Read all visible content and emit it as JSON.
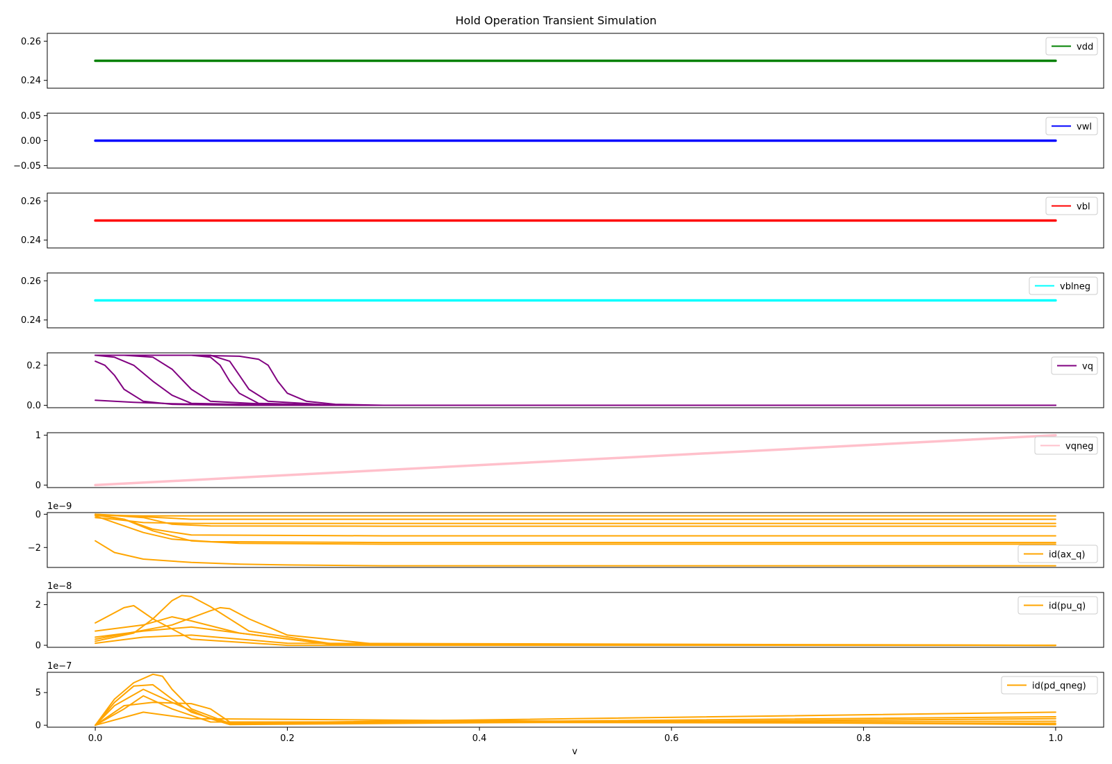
{
  "chart_data": {
    "type": "line",
    "title": "Hold Operation Transient Simulation",
    "xlabel": "v",
    "xlim": [
      -0.05,
      1.05
    ],
    "xticks": [
      0.0,
      0.2,
      0.4,
      0.6,
      0.8,
      1.0
    ],
    "xtick_labels": [
      "0.0",
      "0.2",
      "0.4",
      "0.6",
      "0.8",
      "1.0"
    ],
    "grid": false,
    "subplots": [
      {
        "name": "vdd",
        "color": "#008000",
        "legend": "top-right",
        "ylim": [
          0.236,
          0.264
        ],
        "yticks": [
          0.24,
          0.26
        ],
        "ytick_labels": [
          "0.24",
          "0.26"
        ],
        "offset_text": "",
        "series": [
          {
            "x": [
              0.0,
              1.0
            ],
            "y": [
              0.25,
              0.25
            ]
          }
        ]
      },
      {
        "name": "vwl",
        "color": "#0000ff",
        "legend": "top-right",
        "ylim": [
          -0.055,
          0.055
        ],
        "yticks": [
          -0.05,
          0.0,
          0.05
        ],
        "ytick_labels": [
          "−0.05",
          "0.00",
          "0.05"
        ],
        "offset_text": "",
        "series": [
          {
            "x": [
              0.0,
              1.0
            ],
            "y": [
              0.0,
              0.0
            ]
          }
        ]
      },
      {
        "name": "vbl",
        "color": "#ff0000",
        "legend": "top-right",
        "ylim": [
          0.236,
          0.264
        ],
        "yticks": [
          0.24,
          0.26
        ],
        "ytick_labels": [
          "0.24",
          "0.26"
        ],
        "offset_text": "",
        "series": [
          {
            "x": [
              0.0,
              1.0
            ],
            "y": [
              0.25,
              0.25
            ]
          }
        ]
      },
      {
        "name": "vblneg",
        "color": "#00ffff",
        "legend": "top-right",
        "ylim": [
          0.236,
          0.264
        ],
        "yticks": [
          0.24,
          0.26
        ],
        "ytick_labels": [
          "0.24",
          "0.26"
        ],
        "offset_text": "",
        "series": [
          {
            "x": [
              0.0,
              1.0
            ],
            "y": [
              0.25,
              0.25
            ]
          }
        ]
      },
      {
        "name": "vq",
        "color": "#800080",
        "legend": "top-right",
        "ylim": [
          -0.012,
          0.262
        ],
        "yticks": [
          0.0,
          0.2
        ],
        "ytick_labels": [
          "0.0",
          "0.2"
        ],
        "offset_text": "",
        "series": [
          {
            "x": [
              0.0,
              0.02,
              0.04,
              0.06,
              0.08,
              0.1,
              0.2,
              1.0
            ],
            "y": [
              0.25,
              0.24,
              0.2,
              0.12,
              0.05,
              0.01,
              0.0,
              0.0
            ]
          },
          {
            "x": [
              0.0,
              0.01,
              0.02,
              0.03,
              0.05,
              0.08,
              0.15,
              1.0
            ],
            "y": [
              0.22,
              0.2,
              0.15,
              0.08,
              0.02,
              0.005,
              0.0,
              0.0
            ]
          },
          {
            "x": [
              0.0,
              0.03,
              0.06,
              0.08,
              0.1,
              0.12,
              0.2,
              1.0
            ],
            "y": [
              0.25,
              0.25,
              0.24,
              0.18,
              0.08,
              0.02,
              0.0,
              0.0
            ]
          },
          {
            "x": [
              0.0,
              0.1,
              0.12,
              0.13,
              0.14,
              0.15,
              0.17,
              0.25,
              1.0
            ],
            "y": [
              0.25,
              0.25,
              0.24,
              0.2,
              0.12,
              0.06,
              0.01,
              0.0,
              0.0
            ]
          },
          {
            "x": [
              0.0,
              0.12,
              0.14,
              0.15,
              0.16,
              0.18,
              0.25,
              1.0
            ],
            "y": [
              0.25,
              0.25,
              0.22,
              0.15,
              0.08,
              0.02,
              0.0,
              0.0
            ]
          },
          {
            "x": [
              0.0,
              0.1,
              0.15,
              0.17,
              0.18,
              0.19,
              0.2,
              0.22,
              0.25,
              0.3,
              1.0
            ],
            "y": [
              0.25,
              0.25,
              0.245,
              0.23,
              0.2,
              0.12,
              0.06,
              0.02,
              0.005,
              0.0,
              0.0
            ]
          },
          {
            "x": [
              0.0,
              0.04,
              0.08,
              0.12,
              0.2,
              1.0
            ],
            "y": [
              0.025,
              0.015,
              0.008,
              0.004,
              0.0,
              0.0
            ]
          }
        ]
      },
      {
        "name": "vqneg",
        "color": "#ffc0cb",
        "legend": "top-right",
        "ylim": [
          -0.05,
          1.05
        ],
        "yticks": [
          0,
          1
        ],
        "ytick_labels": [
          "0",
          "1"
        ],
        "offset_text": "",
        "series": [
          {
            "x": [
              0.0,
              1.0
            ],
            "y": [
              0.0,
              1.0
            ]
          }
        ]
      },
      {
        "name": "id(ax_q)",
        "color": "#ffa500",
        "legend": "lower-right",
        "ylim": [
          -3.2,
          0.1
        ],
        "yticks": [
          -2,
          0
        ],
        "ytick_labels": [
          "−2",
          "0"
        ],
        "offset_text": "1e−9",
        "series": [
          {
            "x": [
              0.0,
              0.02,
              0.05,
              0.1,
              0.15,
              0.2,
              0.3,
              1.0
            ],
            "y": [
              -1.6,
              -2.3,
              -2.7,
              -2.9,
              -3.0,
              -3.05,
              -3.1,
              -3.1
            ]
          },
          {
            "x": [
              0.0,
              0.03,
              0.06,
              0.1,
              0.15,
              0.3,
              1.0
            ],
            "y": [
              -0.05,
              -0.3,
              -1.0,
              -1.6,
              -1.75,
              -1.8,
              -1.8
            ]
          },
          {
            "x": [
              0.0,
              0.02,
              0.05,
              0.08,
              0.12,
              0.3,
              1.0
            ],
            "y": [
              -0.1,
              -0.5,
              -1.1,
              -1.5,
              -1.65,
              -1.7,
              -1.7
            ]
          },
          {
            "x": [
              0.0,
              0.03,
              0.06,
              0.1,
              0.3,
              1.0
            ],
            "y": [
              0.0,
              -0.3,
              -0.9,
              -1.25,
              -1.3,
              -1.3
            ]
          },
          {
            "x": [
              0.0,
              0.05,
              0.08,
              0.12,
              0.3,
              1.0
            ],
            "y": [
              0.0,
              -0.2,
              -0.6,
              -0.7,
              -0.72,
              -0.72
            ]
          },
          {
            "x": [
              0.0,
              0.02,
              0.05,
              0.1,
              1.0
            ],
            "y": [
              -0.2,
              -0.3,
              -0.5,
              -0.55,
              -0.55
            ]
          },
          {
            "x": [
              0.0,
              0.05,
              0.1,
              1.0
            ],
            "y": [
              0.0,
              -0.15,
              -0.3,
              -0.3
            ]
          },
          {
            "x": [
              0.0,
              0.05,
              1.0
            ],
            "y": [
              -0.05,
              -0.1,
              -0.1
            ]
          }
        ]
      },
      {
        "name": "id(pu_q)",
        "color": "#ffa500",
        "legend": "top-right",
        "ylim": [
          -0.1,
          2.6
        ],
        "yticks": [
          0,
          2
        ],
        "ytick_labels": [
          "0",
          "2"
        ],
        "offset_text": "1e−8",
        "series": [
          {
            "x": [
              0.0,
              0.02,
              0.03,
              0.04,
              0.06,
              0.1,
              0.2,
              1.0
            ],
            "y": [
              1.1,
              1.6,
              1.85,
              1.95,
              1.3,
              0.3,
              0.0,
              0.0
            ]
          },
          {
            "x": [
              0.0,
              0.04,
              0.06,
              0.08,
              0.09,
              0.1,
              0.12,
              0.16,
              0.25,
              1.0
            ],
            "y": [
              0.2,
              0.6,
              1.3,
              2.2,
              2.45,
              2.4,
              1.9,
              0.7,
              0.05,
              0.0
            ]
          },
          {
            "x": [
              0.0,
              0.08,
              0.12,
              0.13,
              0.14,
              0.16,
              0.2,
              0.3,
              1.0
            ],
            "y": [
              0.3,
              1.0,
              1.7,
              1.85,
              1.8,
              1.3,
              0.5,
              0.02,
              0.0
            ]
          },
          {
            "x": [
              0.0,
              0.05,
              0.08,
              0.1,
              0.15,
              0.25,
              1.0
            ],
            "y": [
              0.7,
              1.0,
              1.4,
              1.2,
              0.6,
              0.02,
              0.0
            ]
          },
          {
            "x": [
              0.0,
              0.05,
              0.1,
              0.15,
              0.25,
              1.0
            ],
            "y": [
              0.4,
              0.7,
              0.9,
              0.6,
              0.03,
              0.0
            ]
          },
          {
            "x": [
              0.0,
              0.05,
              0.1,
              0.2,
              1.0
            ],
            "y": [
              0.1,
              0.4,
              0.5,
              0.1,
              0.0
            ]
          }
        ]
      },
      {
        "name": "id(pd_qneg)",
        "color": "#ffa500",
        "legend": "top-right",
        "ylim": [
          -0.3,
          8.1
        ],
        "yticks": [
          0,
          5
        ],
        "ytick_labels": [
          "0",
          "5"
        ],
        "offset_text": "1e−7",
        "series": [
          {
            "x": [
              0.0,
              0.02,
              0.04,
              0.06,
              0.07,
              0.08,
              0.1,
              0.14,
              1.0
            ],
            "y": [
              0.0,
              4.0,
              6.5,
              7.8,
              7.5,
              5.5,
              2.5,
              0.3,
              2.0
            ]
          },
          {
            "x": [
              0.0,
              0.02,
              0.04,
              0.06,
              0.08,
              0.1,
              0.14,
              1.0
            ],
            "y": [
              0.0,
              3.5,
              6.0,
              6.2,
              4.0,
              2.0,
              0.2,
              1.3
            ]
          },
          {
            "x": [
              0.0,
              0.02,
              0.05,
              0.08,
              0.12,
              0.14,
              1.0
            ],
            "y": [
              0.0,
              3.0,
              5.5,
              3.5,
              1.0,
              0.1,
              1.0
            ]
          },
          {
            "x": [
              0.0,
              0.03,
              0.06,
              0.1,
              0.12,
              0.14,
              1.0
            ],
            "y": [
              0.0,
              3.0,
              3.5,
              3.3,
              2.5,
              0.5,
              0.6
            ]
          },
          {
            "x": [
              0.0,
              0.03,
              0.05,
              0.08,
              0.12,
              1.0
            ],
            "y": [
              0.0,
              2.5,
              4.5,
              2.5,
              0.5,
              0.3
            ]
          },
          {
            "x": [
              0.0,
              0.05,
              0.1,
              1.0
            ],
            "y": [
              0.0,
              2.0,
              1.0,
              0.1
            ]
          }
        ]
      }
    ]
  }
}
